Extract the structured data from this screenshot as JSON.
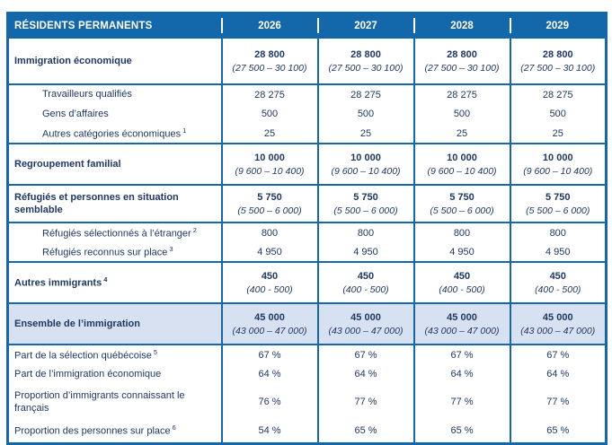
{
  "colors": {
    "header_blue": "#1268AB",
    "border_blue": "#1268AB",
    "text_navy": "#1F3864",
    "highlight_row": "#D8E1F1"
  },
  "table": {
    "header_label": "RÉSIDENTS PERMANENTS",
    "years": [
      "2026",
      "2027",
      "2028",
      "2029"
    ],
    "rows": [
      {
        "type": "group",
        "label": "Immigration économique",
        "sup": "",
        "values": [
          "28 800",
          "28 800",
          "28 800",
          "28 800"
        ],
        "ranges": [
          "(27 500 – 30 100)",
          "(27 500 – 30 100)",
          "(27 500 – 30 100)",
          "(27 500 – 30 100)"
        ]
      },
      {
        "type": "sub",
        "label": "Travailleurs qualifiés",
        "sup": "",
        "values": [
          "28 275",
          "28 275",
          "28 275",
          "28 275"
        ]
      },
      {
        "type": "sub",
        "label": "Gens d’affaires",
        "sup": "",
        "values": [
          "500",
          "500",
          "500",
          "500"
        ]
      },
      {
        "type": "sub",
        "label": "Autres catégories économiques",
        "sup": "1",
        "values": [
          "25",
          "25",
          "25",
          "25"
        ]
      },
      {
        "type": "group",
        "label": "Regroupement familial",
        "sup": "",
        "values": [
          "10 000",
          "10 000",
          "10 000",
          "10 000"
        ],
        "ranges": [
          "(9 600 – 10 400)",
          "(9 600 – 10 400)",
          "(9 600 – 10 400)",
          "(9 600 – 10 400)"
        ]
      },
      {
        "type": "group",
        "label": "Réfugiés et personnes en situation semblable",
        "sup": "",
        "values": [
          "5 750",
          "5 750",
          "5 750",
          "5 750"
        ],
        "ranges": [
          "(5 500 – 6 000)",
          "(5 500 – 6 000)",
          "(5 500 – 6 000)",
          "(5 500 – 6 000)"
        ]
      },
      {
        "type": "sub",
        "label": "Réfugiés sélectionnés à l’étranger",
        "sup": "2",
        "values": [
          "800",
          "800",
          "800",
          "800"
        ]
      },
      {
        "type": "sub",
        "label": "Réfugiés reconnus sur place",
        "sup": "3",
        "values": [
          "4 950",
          "4 950",
          "4 950",
          "4 950"
        ]
      },
      {
        "type": "group",
        "label": "Autres immigrants",
        "sup": "4",
        "values": [
          "450",
          "450",
          "450",
          "450"
        ],
        "ranges": [
          "(400 - 500)",
          "(400 - 500)",
          "(400 - 500)",
          "(400 - 500)"
        ]
      },
      {
        "type": "total",
        "label": "Ensemble de l’immigration",
        "sup": "",
        "values": [
          "45 000",
          "45 000",
          "45 000",
          "45 000"
        ],
        "ranges": [
          "(43 000 – 47 000)",
          "(43 000 – 47 000)",
          "(43 000 – 47 000)",
          "(43 000 – 47 000)"
        ]
      },
      {
        "type": "percent",
        "label": "Part de la sélection québécoise",
        "sup": "5",
        "values": [
          "67 %",
          "67 %",
          "67 %",
          "67 %"
        ]
      },
      {
        "type": "percent",
        "label": "Part de l’immigration économique",
        "sup": "",
        "values": [
          "64 %",
          "64 %",
          "64 %",
          "64 %"
        ]
      },
      {
        "type": "percent",
        "label": "Proportion d’immigrants connaissant le français",
        "sup": "",
        "values": [
          "76 %",
          "77 %",
          "77 %",
          "77 %"
        ]
      },
      {
        "type": "percent",
        "label": "Proportion des personnes sur place",
        "sup": "6",
        "values": [
          "54 %",
          "65 %",
          "65 %",
          "65 %"
        ]
      }
    ]
  }
}
